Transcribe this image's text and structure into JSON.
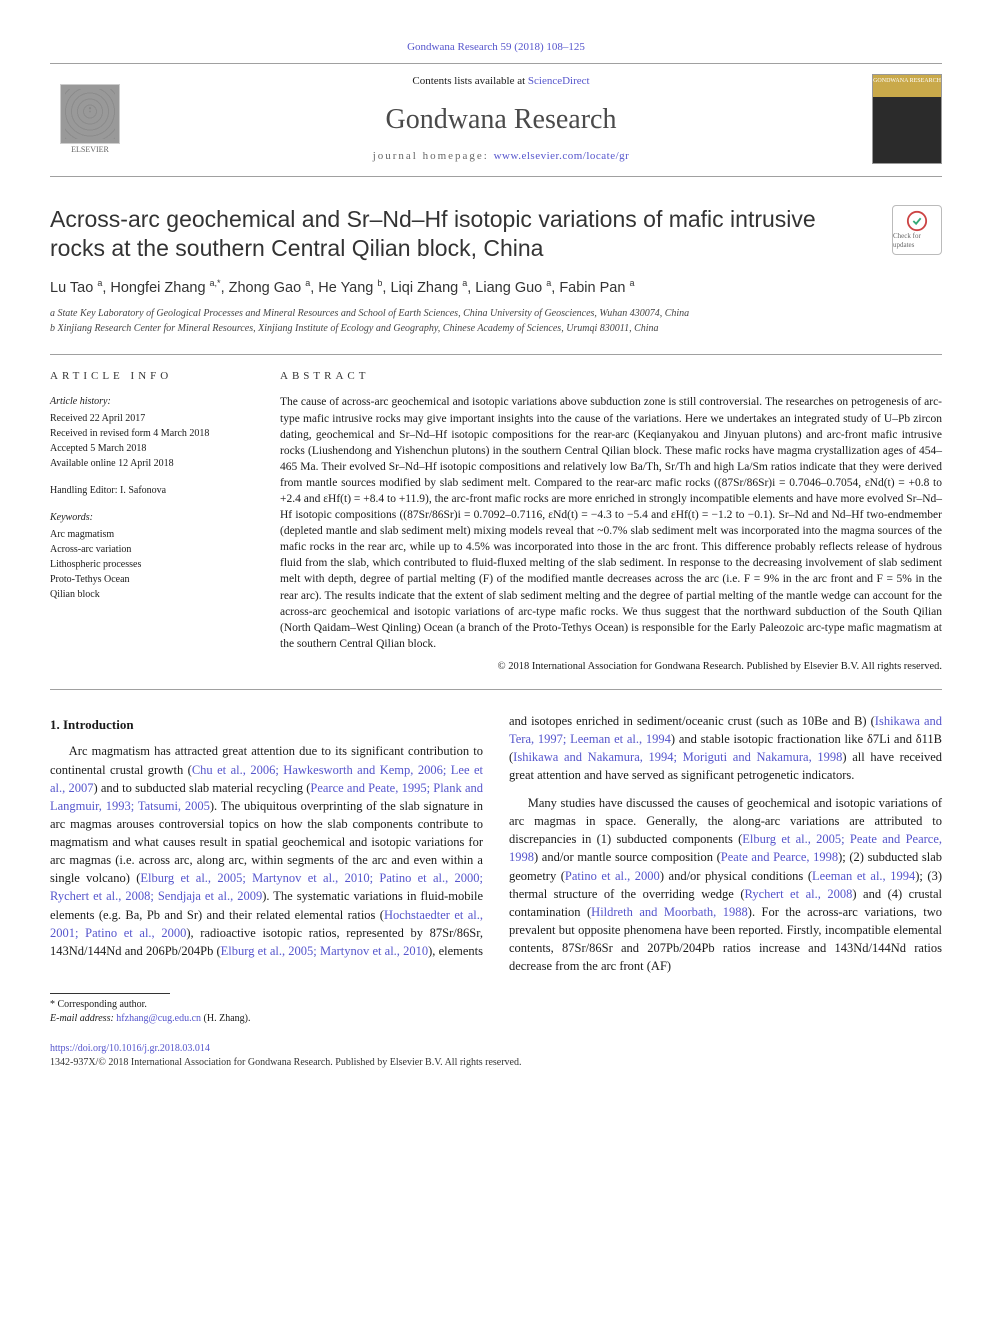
{
  "header": {
    "citation": "Gondwana Research 59 (2018) 108–125",
    "contents_prefix": "Contents lists available at ",
    "contents_link": "ScienceDirect",
    "journal_name": "Gondwana Research",
    "homepage_prefix": "journal homepage: ",
    "homepage_url": "www.elsevier.com/locate/gr",
    "publisher_name": "ELSEVIER",
    "cover_label": "GONDWANA RESEARCH"
  },
  "badge": {
    "label": "Check for updates"
  },
  "article": {
    "title": "Across-arc geochemical and Sr–Nd–Hf isotopic variations of mafic intrusive rocks at the southern Central Qilian block, China",
    "authors_html": "Lu Tao <sup>a</sup>, Hongfei Zhang <sup>a,*</sup>, Zhong Gao <sup>a</sup>, He Yang <sup>b</sup>, Liqi Zhang <sup>a</sup>, Liang Guo <sup>a</sup>, Fabin Pan <sup>a</sup>",
    "affiliations": [
      "a  State Key Laboratory of Geological Processes and Mineral Resources and School of Earth Sciences, China University of Geosciences, Wuhan 430074, China",
      "b  Xinjiang Research Center for Mineral Resources, Xinjiang Institute of Ecology and Geography, Chinese Academy of Sciences, Urumqi 830011, China"
    ]
  },
  "article_info": {
    "head": "ARTICLE INFO",
    "history_label": "Article history:",
    "history": [
      "Received 22 April 2017",
      "Received in revised form 4 March 2018",
      "Accepted 5 March 2018",
      "Available online 12 April 2018"
    ],
    "editor_label": "Handling Editor: I. Safonova",
    "keywords_label": "Keywords:",
    "keywords": [
      "Arc magmatism",
      "Across-arc variation",
      "Lithospheric processes",
      "Proto-Tethys Ocean",
      "Qilian block"
    ]
  },
  "abstract": {
    "head": "ABSTRACT",
    "text": "The cause of across-arc geochemical and isotopic variations above subduction zone is still controversial. The researches on petrogenesis of arc-type mafic intrusive rocks may give important insights into the cause of the variations. Here we undertakes an integrated study of U–Pb zircon dating, geochemical and Sr–Nd–Hf isotopic compositions for the rear-arc (Keqianyakou and Jinyuan plutons) and arc-front mafic intrusive rocks (Liushendong and Yishenchun plutons) in the southern Central Qilian block. These mafic rocks have magma crystallization ages of 454–465 Ma. Their evolved Sr–Nd–Hf isotopic compositions and relatively low Ba/Th, Sr/Th and high La/Sm ratios indicate that they were derived from mantle sources modified by slab sediment melt. Compared to the rear-arc mafic rocks ((87Sr/86Sr)i = 0.7046–0.7054, εNd(t) = +0.8 to +2.4 and εHf(t) = +8.4 to +11.9), the arc-front mafic rocks are more enriched in strongly incompatible elements and have more evolved Sr–Nd–Hf isotopic compositions ((87Sr/86Sr)i = 0.7092–0.7116, εNd(t) = −4.3 to −5.4 and εHf(t) = −1.2 to −0.1). Sr–Nd and Nd–Hf two-endmember (depleted mantle and slab sediment melt) mixing models reveal that ~0.7% slab sediment melt was incorporated into the magma sources of the mafic rocks in the rear arc, while up to 4.5% was incorporated into those in the arc front. This difference probably reflects release of hydrous fluid from the slab, which contributed to fluid-fluxed melting of the slab sediment. In response to the decreasing involvement of slab sediment melt with depth, degree of partial melting (F) of the modified mantle decreases across the arc (i.e. F = 9% in the arc front and F = 5% in the rear arc). The results indicate that the extent of slab sediment melting and the degree of partial melting of the mantle wedge can account for the across-arc geochemical and isotopic variations of arc-type mafic rocks. We thus suggest that the northward subduction of the South Qilian (North Qaidam–West Qinling) Ocean (a branch of the Proto-Tethys Ocean) is responsible for the Early Paleozoic arc-type mafic magmatism at the southern Central Qilian block.",
    "copyright": "© 2018 International Association for Gondwana Research. Published by Elsevier B.V. All rights reserved."
  },
  "body": {
    "section1_head": "1. Introduction",
    "p1_a": "Arc magmatism has attracted great attention due to its significant contribution to continental crustal growth (",
    "p1_refs1": "Chu et al., 2006; Hawkesworth and Kemp, 2006; Lee et al., 2007",
    "p1_b": ") and to subducted slab material recycling (",
    "p1_refs2": "Pearce and Peate, 1995; Plank and Langmuir, 1993; Tatsumi, 2005",
    "p1_c": "). The ubiquitous overprinting of the slab signature in arc magmas arouses controversial topics on how the slab components contribute to magmatism and what causes result in spatial geochemical and isotopic variations for arc magmas (i.e. across arc, along arc, within segments of the arc and even within a single volcano) (",
    "p1_refs3": "Elburg et al., 2005; Martynov et al., 2010; Patino et al., 2000; Rychert et al., 2008; Sendjaja et al., 2009",
    "p1_d": "). The systematic variations in fluid-mobile elements (e.g. Ba, Pb and Sr) and their related elemental ratios (",
    "p1_refs4": "Hochstaedter et al., 2001; Patino et al., 2000",
    "p1_e": "), radioactive isotopic ratios, represented by 87Sr/86Sr, 143Nd/144Nd and 206Pb/204Pb (",
    "p1_refs5": "Elburg et al., 2005; Martynov et al., 2010",
    "p1_f": "), elements and isotopes enriched in sediment/oceanic crust (such as 10Be and B) (",
    "p1_refs6": "Ishikawa and Tera, 1997; Leeman et al., 1994",
    "p1_g": ") and stable isotopic fractionation like δ7Li and δ11B (",
    "p1_refs7": "Ishikawa and Nakamura, 1994; Moriguti and Nakamura, 1998",
    "p1_h": ") all have received great attention and have served as significant petrogenetic indicators.",
    "p2_a": "Many studies have discussed the causes of geochemical and isotopic variations of arc magmas in space. Generally, the along-arc variations are attributed to discrepancies in (1) subducted components (",
    "p2_refs1": "Elburg et al., 2005; Peate and Pearce, 1998",
    "p2_b": ") and/or mantle source composition (",
    "p2_refs2": "Peate and Pearce, 1998",
    "p2_c": "); (2) subducted slab geometry (",
    "p2_refs3": "Patino et al., 2000",
    "p2_d": ") and/or physical conditions (",
    "p2_refs4": "Leeman et al., 1994",
    "p2_e": "); (3) thermal structure of the overriding wedge (",
    "p2_refs5": "Rychert et al., 2008",
    "p2_f": ") and (4) crustal contamination (",
    "p2_refs6": "Hildreth and Moorbath, 1988",
    "p2_g": "). For the across-arc variations, two prevalent but opposite phenomena have been reported. Firstly, incompatible elemental contents, 87Sr/86Sr and 207Pb/204Pb ratios increase and 143Nd/144Nd ratios decrease from the arc front (AF)"
  },
  "footnote": {
    "corresponding": "* Corresponding author.",
    "email_label": "E-mail address: ",
    "email": "hfzhang@cug.edu.cn",
    "email_suffix": " (H. Zhang)."
  },
  "footer": {
    "doi": "https://doi.org/10.1016/j.gr.2018.03.014",
    "issn_line": "1342-937X/© 2018 International Association for Gondwana Research. Published by Elsevier B.V. All rights reserved."
  },
  "colors": {
    "link": "#5555cc",
    "rule": "#a0a0a0",
    "text": "#1a1a1a"
  }
}
